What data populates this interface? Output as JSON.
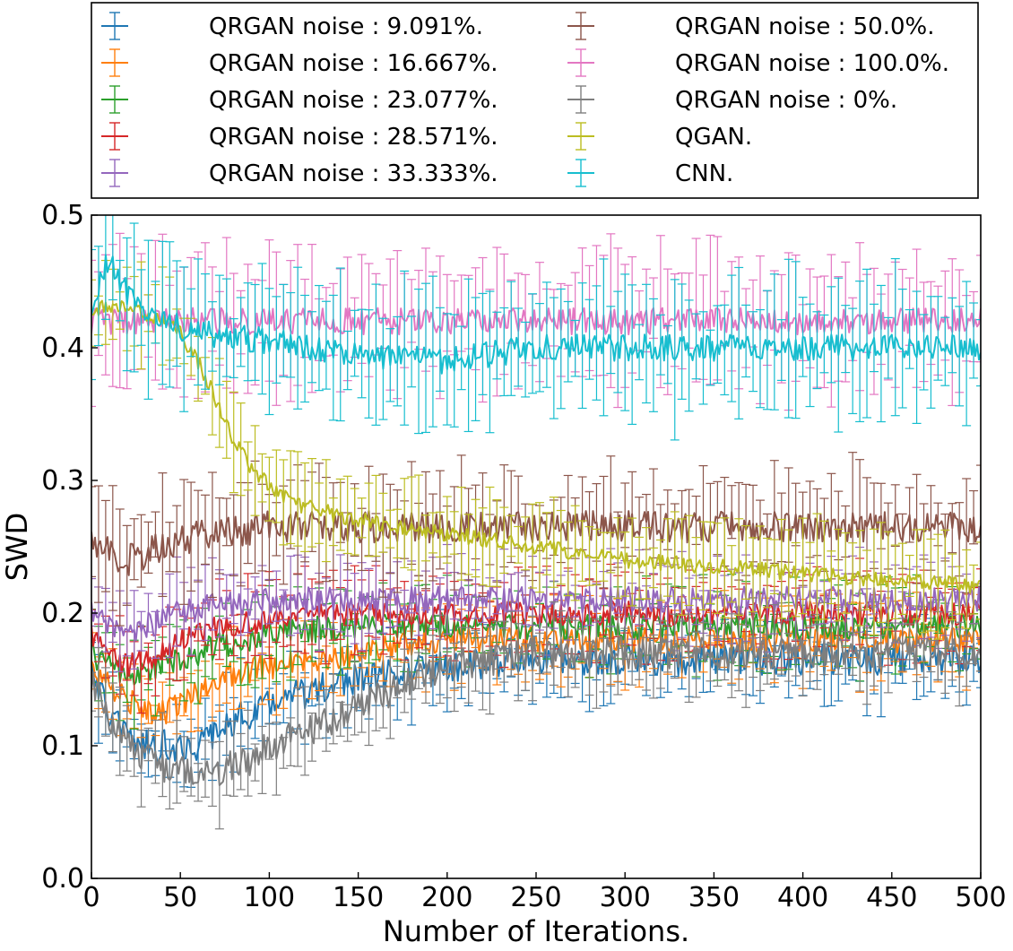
{
  "chart_data": {
    "type": "line",
    "title": "",
    "xlabel": "Number of Iterations.",
    "ylabel": "SWD",
    "xlim": [
      0,
      500
    ],
    "ylim": [
      0,
      0.5
    ],
    "xticks": [
      0,
      50,
      100,
      150,
      200,
      250,
      300,
      350,
      400,
      450,
      500
    ],
    "xtick_labels": [
      "0",
      "50",
      "100",
      "150",
      "200",
      "250",
      "300",
      "350",
      "400",
      "450",
      "500"
    ],
    "yticks": [
      0.0,
      0.1,
      0.2,
      0.3,
      0.4,
      0.5
    ],
    "ytick_labels": [
      "0.0",
      "0.1",
      "0.2",
      "0.3",
      "0.4",
      "0.5"
    ],
    "grid": false,
    "legend_position": "top, outside plot, two columns",
    "error_bars": true,
    "series": [
      {
        "name": "QRGAN noise : 9.091%.",
        "color": "#1f77b4",
        "x": [
          0,
          10,
          20,
          30,
          40,
          50,
          60,
          70,
          80,
          90,
          100,
          120,
          150,
          200,
          250,
          300,
          350,
          400,
          450,
          500
        ],
        "mean": [
          0.16,
          0.125,
          0.105,
          0.1,
          0.1,
          0.1,
          0.1,
          0.11,
          0.12,
          0.125,
          0.13,
          0.14,
          0.15,
          0.16,
          0.165,
          0.165,
          0.165,
          0.165,
          0.165,
          0.165
        ],
        "err": 0.025,
        "noise": 0.012
      },
      {
        "name": "QRGAN noise : 16.667%.",
        "color": "#ff7f0e",
        "x": [
          0,
          10,
          20,
          30,
          40,
          50,
          60,
          70,
          80,
          100,
          150,
          200,
          250,
          300,
          350,
          400,
          450,
          500
        ],
        "mean": [
          0.16,
          0.145,
          0.135,
          0.125,
          0.125,
          0.13,
          0.14,
          0.15,
          0.155,
          0.16,
          0.17,
          0.18,
          0.18,
          0.18,
          0.18,
          0.18,
          0.18,
          0.18
        ],
        "err": 0.025,
        "noise": 0.01
      },
      {
        "name": "QRGAN noise : 23.077%.",
        "color": "#2ca02c",
        "x": [
          0,
          10,
          20,
          30,
          40,
          50,
          70,
          100,
          150,
          200,
          250,
          300,
          350,
          400,
          450,
          500
        ],
        "mean": [
          0.17,
          0.16,
          0.155,
          0.155,
          0.16,
          0.165,
          0.175,
          0.185,
          0.19,
          0.19,
          0.19,
          0.19,
          0.19,
          0.19,
          0.19,
          0.19
        ],
        "err": 0.025,
        "noise": 0.01
      },
      {
        "name": "QRGAN noise : 28.571%.",
        "color": "#d62728",
        "x": [
          0,
          10,
          20,
          30,
          40,
          50,
          70,
          100,
          150,
          200,
          250,
          300,
          350,
          400,
          450,
          500
        ],
        "mean": [
          0.185,
          0.17,
          0.16,
          0.165,
          0.17,
          0.18,
          0.19,
          0.195,
          0.2,
          0.2,
          0.2,
          0.2,
          0.2,
          0.2,
          0.2,
          0.2
        ],
        "err": 0.025,
        "noise": 0.009
      },
      {
        "name": "QRGAN noise : 33.333%.",
        "color": "#9467bd",
        "x": [
          0,
          10,
          20,
          30,
          40,
          50,
          70,
          100,
          150,
          200,
          250,
          300,
          350,
          400,
          450,
          500
        ],
        "mean": [
          0.2,
          0.19,
          0.185,
          0.19,
          0.195,
          0.2,
          0.205,
          0.21,
          0.21,
          0.21,
          0.21,
          0.21,
          0.21,
          0.21,
          0.21,
          0.21
        ],
        "err": 0.025,
        "noise": 0.01
      },
      {
        "name": "QRGAN noise : 50.0%.",
        "color": "#8c564b",
        "x": [
          0,
          10,
          20,
          30,
          40,
          50,
          70,
          100,
          150,
          200,
          250,
          300,
          350,
          400,
          450,
          500
        ],
        "mean": [
          0.25,
          0.245,
          0.24,
          0.245,
          0.25,
          0.255,
          0.26,
          0.265,
          0.265,
          0.265,
          0.265,
          0.265,
          0.265,
          0.265,
          0.265,
          0.265
        ],
        "err": 0.035,
        "noise": 0.012
      },
      {
        "name": "QRGAN noise : 100.0%.",
        "color": "#e377c2",
        "x": [
          0,
          50,
          100,
          150,
          200,
          250,
          300,
          350,
          400,
          450,
          500
        ],
        "mean": [
          0.42,
          0.42,
          0.42,
          0.42,
          0.42,
          0.42,
          0.42,
          0.42,
          0.42,
          0.42,
          0.42
        ],
        "err": 0.045,
        "noise": 0.01
      },
      {
        "name": "QRGAN noise : 0%.",
        "color": "#7f7f7f",
        "x": [
          0,
          10,
          20,
          30,
          40,
          50,
          60,
          70,
          80,
          90,
          100,
          120,
          150,
          200,
          250,
          300,
          350,
          400,
          450,
          500
        ],
        "mean": [
          0.15,
          0.12,
          0.1,
          0.09,
          0.085,
          0.08,
          0.08,
          0.08,
          0.085,
          0.09,
          0.1,
          0.11,
          0.13,
          0.16,
          0.17,
          0.17,
          0.17,
          0.17,
          0.17,
          0.17
        ],
        "err": 0.025,
        "noise": 0.012
      },
      {
        "name": "QGAN.",
        "color": "#bcbd22",
        "x": [
          0,
          10,
          20,
          30,
          40,
          50,
          60,
          70,
          80,
          90,
          100,
          120,
          150,
          200,
          250,
          300,
          350,
          400,
          450,
          500
        ],
        "mean": [
          0.43,
          0.43,
          0.43,
          0.425,
          0.42,
          0.41,
          0.39,
          0.36,
          0.33,
          0.31,
          0.295,
          0.28,
          0.27,
          0.26,
          0.25,
          0.24,
          0.235,
          0.23,
          0.225,
          0.22
        ],
        "err": 0.03,
        "noise": 0.006
      },
      {
        "name": "CNN.",
        "color": "#17becf",
        "x": [
          0,
          5,
          10,
          20,
          30,
          40,
          50,
          70,
          100,
          150,
          200,
          250,
          300,
          350,
          400,
          450,
          500
        ],
        "mean": [
          0.43,
          0.45,
          0.47,
          0.44,
          0.425,
          0.42,
          0.415,
          0.41,
          0.405,
          0.395,
          0.39,
          0.4,
          0.4,
          0.4,
          0.4,
          0.4,
          0.4
        ],
        "err": 0.045,
        "noise": 0.01
      }
    ]
  }
}
